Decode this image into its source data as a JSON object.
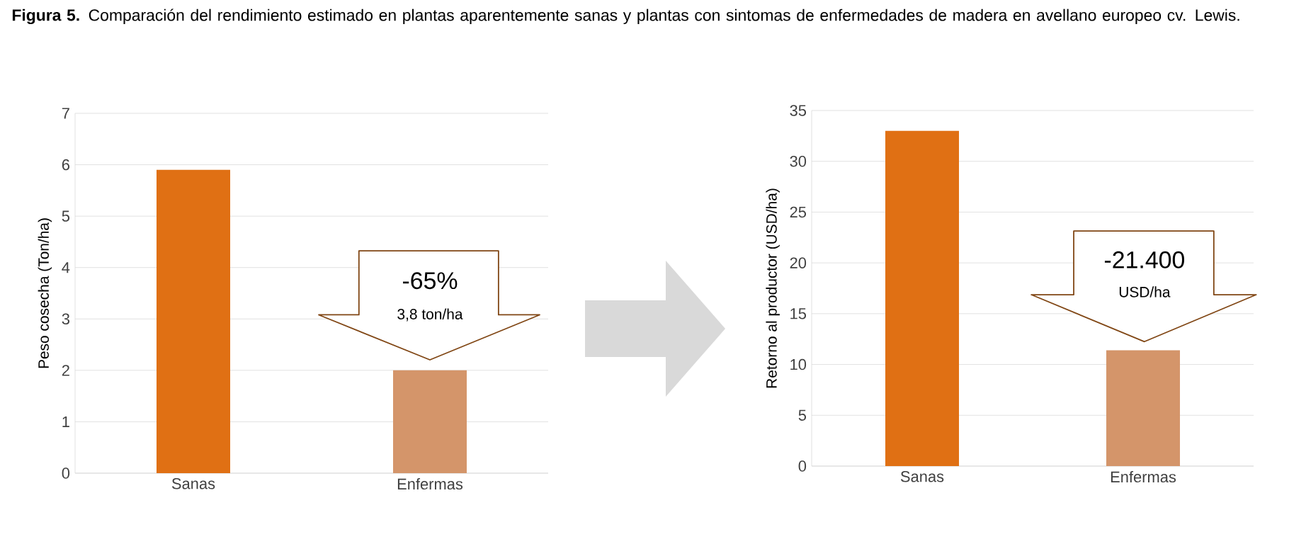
{
  "chart_data": [
    {
      "type": "bar",
      "title": "**Figura 5.** Comparación del rendimiento estimado en plantas aparentemente sanas y plantas con sintomas de enfermedades de madera en avellano europeo cv. Lewis.",
      "categories": [
        "Sanas",
        "Enfermas"
      ],
      "values": [
        5.9,
        2.0
      ],
      "colors": [
        "#e07014",
        "#d4956a"
      ],
      "ylabel": "Peso cosecha (Ton/ha)",
      "ylim": [
        0,
        7
      ],
      "yticks": [
        0,
        1,
        2,
        3,
        4,
        5,
        6,
        7
      ],
      "grid": "y",
      "annotations": [
        "-65%",
        "3,8 ton/ha"
      ]
    },
    {
      "type": "bar",
      "categories": [
        "Sanas",
        "Enfermas"
      ],
      "values": [
        33.0,
        11.4
      ],
      "colors": [
        "#e07014",
        "#d4956a"
      ],
      "ylabel": "Retorno al productor (USD/ha)",
      "ylim": [
        0,
        35
      ],
      "yticks": [
        0,
        5,
        10,
        15,
        20,
        25,
        30,
        35
      ],
      "grid": "y",
      "annotations": [
        "-21.400",
        "USD/ha"
      ]
    }
  ]
}
